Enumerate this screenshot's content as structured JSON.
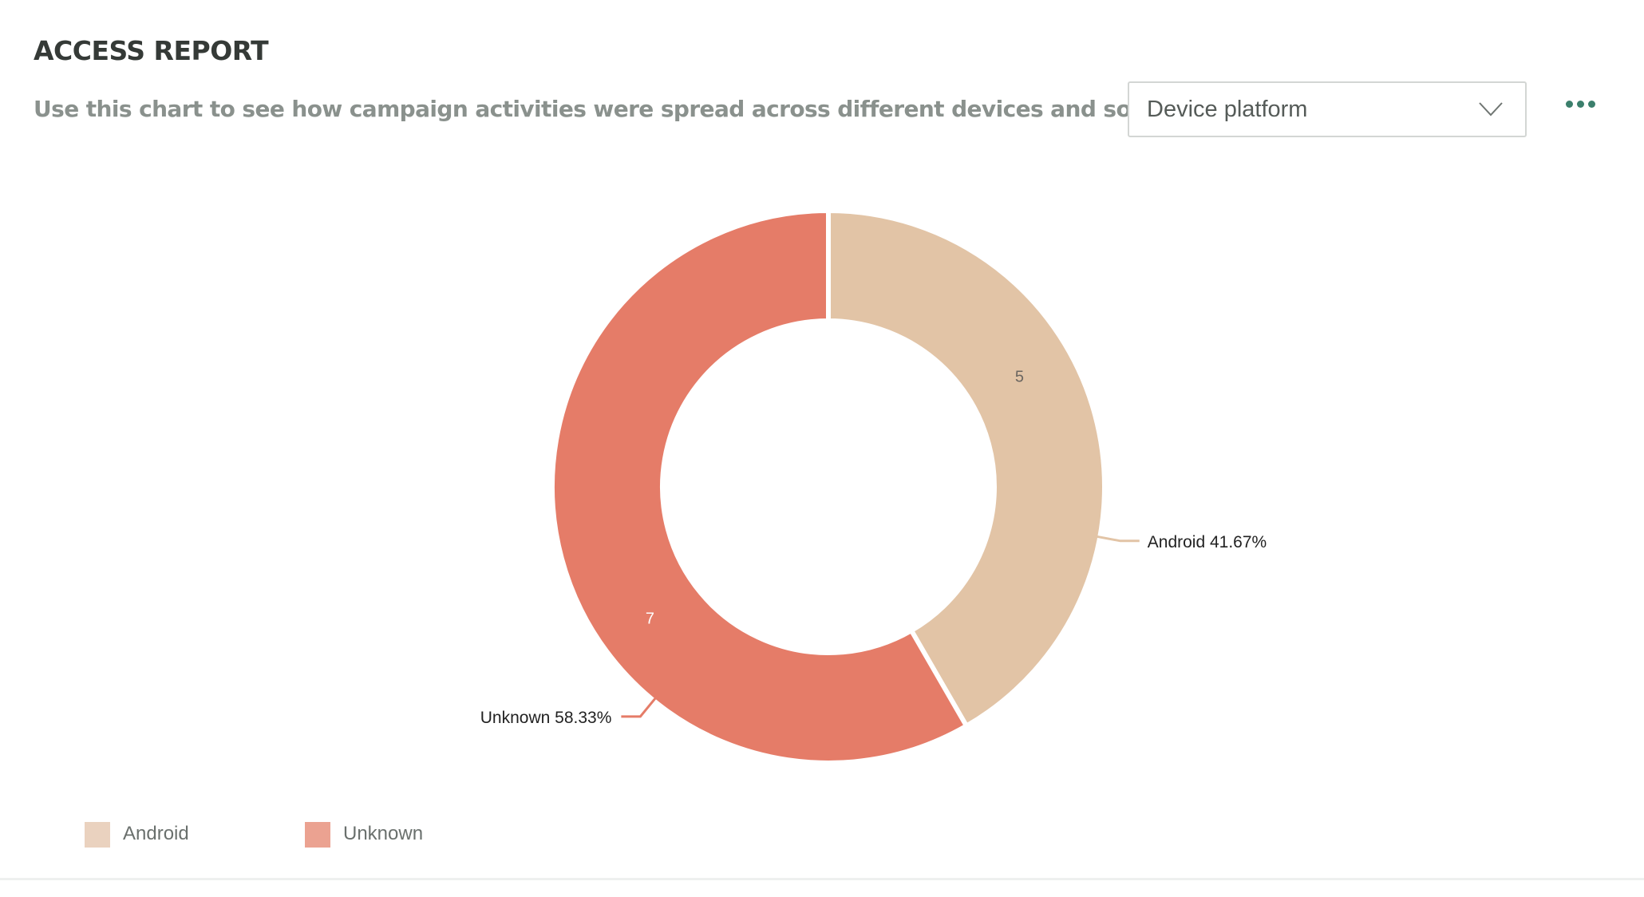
{
  "header": {
    "title": "ACCESS REPORT",
    "subtitle": "Use this chart to see how campaign activities were spread across different devices and software."
  },
  "controls": {
    "dimension_select": {
      "value": "Device platform",
      "icon": "chevron-down-icon"
    },
    "more_menu": {
      "icon": "more-horizontal-icon",
      "color": "#3b7f6c"
    }
  },
  "chart_data": {
    "type": "pie",
    "donut": true,
    "title": "",
    "categories": [
      "Android",
      "Unknown"
    ],
    "values": [
      5,
      7
    ],
    "percent_labels": [
      "41.67%",
      "58.33%"
    ],
    "colors": [
      "#e2c4a6",
      "#e57c68"
    ],
    "legend_colors": [
      "#ead2bf",
      "#eba291"
    ],
    "legend_position": "bottom-left",
    "slice_labels": [
      "Android 41.67%",
      "Unknown 58.33%"
    ]
  }
}
